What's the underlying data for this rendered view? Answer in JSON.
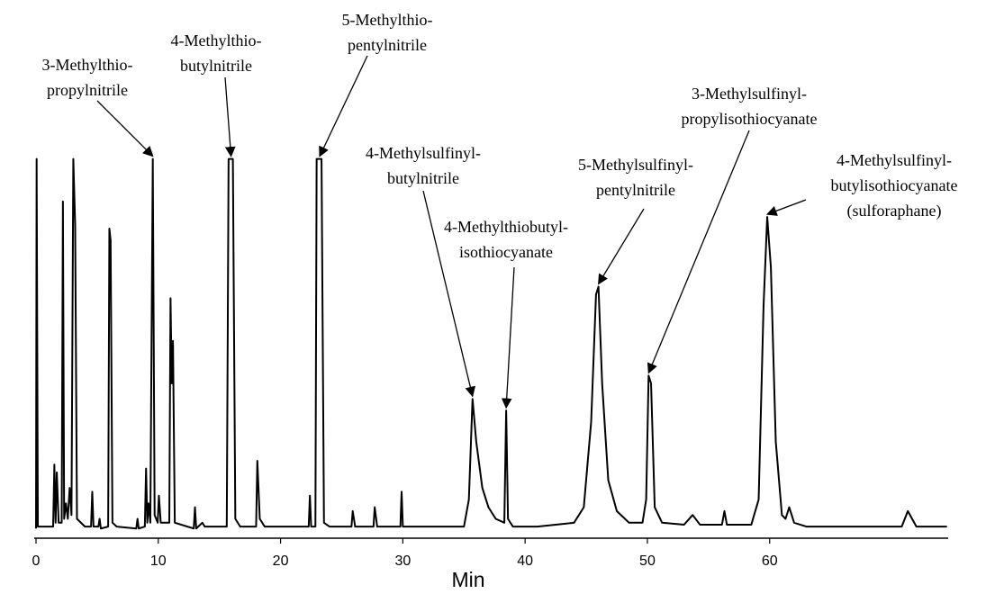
{
  "chart_data": {
    "type": "line",
    "x_label": "Min",
    "color": "#000000",
    "xlim": [
      0,
      74.6
    ],
    "ylim": [
      0,
      100
    ],
    "xticks": [
      0,
      10,
      20,
      30,
      40,
      50,
      60
    ],
    "x": [
      0,
      0.05,
      0.15,
      1.4,
      1.5,
      1.6,
      1.7,
      1.85,
      2.1,
      2.2,
      2.3,
      2.45,
      2.6,
      2.75,
      2.9,
      3.05,
      3.2,
      3.35,
      4.0,
      4.5,
      4.6,
      4.7,
      5.1,
      5.2,
      5.3,
      5.9,
      6.0,
      6.1,
      6.25,
      6.6,
      8.2,
      8.3,
      8.4,
      8.9,
      9.0,
      9.1,
      9.2,
      9.35,
      9.55,
      9.7,
      9.95,
      10.05,
      10.2,
      10.9,
      11.0,
      11.1,
      11.2,
      11.35,
      12.9,
      13.0,
      13.1,
      13.6,
      13.8,
      15.6,
      15.75,
      15.95,
      16.1,
      16.3,
      16.7,
      18.0,
      18.1,
      18.3,
      18.7,
      22.3,
      22.4,
      22.5,
      22.85,
      22.95,
      23.2,
      23.35,
      23.55,
      24.0,
      25.8,
      25.9,
      26.1,
      27.6,
      27.7,
      27.9,
      29.8,
      29.9,
      30.0,
      35.0,
      35.4,
      35.7,
      36.0,
      36.5,
      37.0,
      37.6,
      38.3,
      38.45,
      38.6,
      39.0,
      41.0,
      42.5,
      44.0,
      44.8,
      45.4,
      45.8,
      46.0,
      46.3,
      46.8,
      47.5,
      48.5,
      49.6,
      49.9,
      50.1,
      50.3,
      50.6,
      51.2,
      53.0,
      53.7,
      54.3,
      56.1,
      56.3,
      56.5,
      58.5,
      59.1,
      59.5,
      59.8,
      60.1,
      60.5,
      61.0,
      61.3,
      61.6,
      62.0,
      63.0,
      70.8,
      71.3,
      72.0,
      74.5
    ],
    "values": [
      2.5,
      98,
      3,
      3,
      19,
      4,
      17,
      4,
      4,
      87,
      5,
      9,
      5,
      13,
      6,
      98,
      81,
      5,
      3,
      3,
      12,
      3,
      3,
      5,
      2.5,
      3,
      80,
      77,
      4,
      3,
      2.5,
      5,
      2.5,
      3,
      18,
      4,
      9,
      4,
      98,
      6,
      4,
      11,
      4,
      4,
      62,
      40,
      51,
      4,
      2.5,
      8,
      2.5,
      4,
      3,
      3,
      98,
      98,
      98,
      5,
      3,
      3,
      20,
      5,
      3,
      3,
      11,
      3,
      3,
      98,
      98,
      98,
      4,
      3,
      3,
      7,
      3,
      3,
      8,
      3,
      3,
      12,
      3,
      3,
      10,
      36,
      25,
      13,
      8,
      5,
      4,
      33,
      5,
      3,
      3,
      3.5,
      4,
      8,
      30,
      63,
      65,
      40,
      15,
      7,
      4,
      4,
      10,
      42,
      40,
      8,
      4,
      3.5,
      6,
      3.5,
      3.5,
      7,
      3.5,
      3.5,
      10,
      60,
      83,
      70,
      25,
      6,
      5,
      8,
      4,
      3,
      3,
      7,
      3,
      3
    ],
    "annotations": [
      {
        "text": [
          "3-Methylthio-",
          "propylnitrile"
        ],
        "x": 9.55,
        "y": 98
      },
      {
        "text": [
          "4-Methylthio-",
          "butylnitrile"
        ],
        "x": 15.95,
        "y": 98
      },
      {
        "text": [
          "5-Methylthio-",
          "pentylnitrile"
        ],
        "x": 23.2,
        "y": 98
      },
      {
        "text": [
          "4-Methylsulfinyl-",
          "butylnitrile"
        ],
        "x": 35.7,
        "y": 36
      },
      {
        "text": [
          "4-Methylthiobutyl-",
          "isothiocyanate"
        ],
        "x": 38.45,
        "y": 33
      },
      {
        "text": [
          "5-Methylsulfinyl-",
          "pentylnitrile"
        ],
        "x": 46.0,
        "y": 65
      },
      {
        "text": [
          "3-Methylsulfinyl-",
          "propylisothiocyanate"
        ],
        "x": 50.1,
        "y": 42
      },
      {
        "text": [
          "4-Methylsulfinyl-",
          "butylisothiocyanate",
          "(sulforaphane)"
        ],
        "x": 59.8,
        "y": 83
      }
    ]
  }
}
